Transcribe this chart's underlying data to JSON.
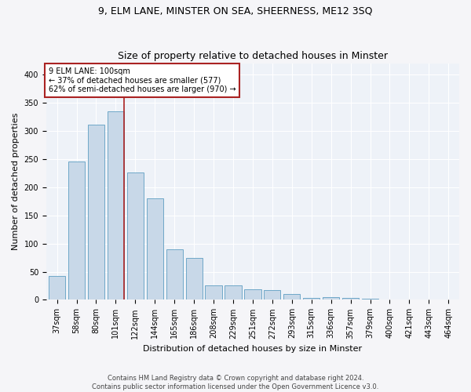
{
  "title1": "9, ELM LANE, MINSTER ON SEA, SHEERNESS, ME12 3SQ",
  "title2": "Size of property relative to detached houses in Minster",
  "xlabel": "Distribution of detached houses by size in Minster",
  "ylabel": "Number of detached properties",
  "categories": [
    "37sqm",
    "58sqm",
    "80sqm",
    "101sqm",
    "122sqm",
    "144sqm",
    "165sqm",
    "186sqm",
    "208sqm",
    "229sqm",
    "251sqm",
    "272sqm",
    "293sqm",
    "315sqm",
    "336sqm",
    "357sqm",
    "379sqm",
    "400sqm",
    "421sqm",
    "443sqm",
    "464sqm"
  ],
  "values": [
    42,
    246,
    311,
    335,
    226,
    181,
    90,
    74,
    26,
    26,
    19,
    17,
    10,
    4,
    5,
    4,
    2,
    1,
    0,
    0,
    1
  ],
  "bar_color": "#c8d8e8",
  "bar_edge_color": "#6fa8c8",
  "vline_index": 3,
  "vline_color": "#aa2222",
  "annotation_line1": "9 ELM LANE: 100sqm",
  "annotation_line2": "← 37% of detached houses are smaller (577)",
  "annotation_line3": "62% of semi-detached houses are larger (970) →",
  "annotation_box_color": "#ffffff",
  "annotation_box_edge": "#aa2222",
  "bg_color": "#eef2f8",
  "fig_bg_color": "#f5f5f8",
  "grid_color": "#ffffff",
  "footer1": "Contains HM Land Registry data © Crown copyright and database right 2024.",
  "footer2": "Contains public sector information licensed under the Open Government Licence v3.0.",
  "ylim": [
    0,
    420
  ],
  "yticks": [
    0,
    50,
    100,
    150,
    200,
    250,
    300,
    350,
    400
  ],
  "title1_fontsize": 9,
  "title2_fontsize": 9,
  "ylabel_fontsize": 8,
  "xlabel_fontsize": 8,
  "tick_fontsize": 7,
  "annotation_fontsize": 7,
  "footer_fontsize": 6
}
